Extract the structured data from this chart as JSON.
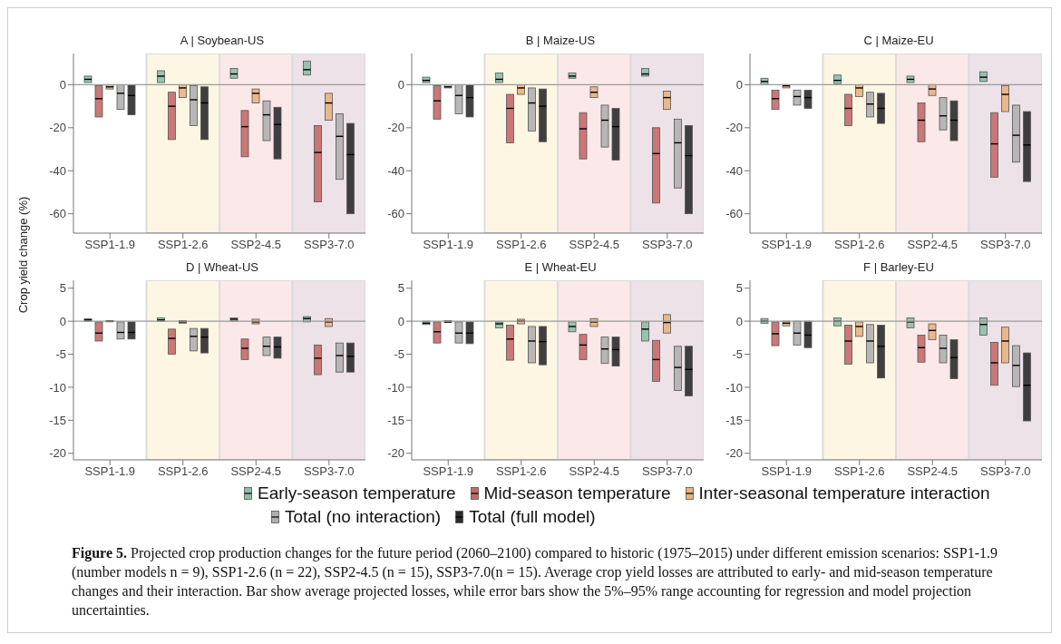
{
  "chart_data": [
    {
      "type": "box",
      "title": "A | Soybean-US",
      "categories": [
        "SSP1-1.9",
        "SSP1-2.6",
        "SSP2-4.5",
        "SSP3-7.0"
      ],
      "ylim": [
        -69,
        14.5
      ],
      "yticks": [
        -60,
        -40,
        -20,
        0
      ],
      "legend": "bottom",
      "annotations": [
        "Figure 5.",
        "Projected crop production changes for the future period (2060–2100) compared to historic (1975–2015) under different emission scenarios: SSP1-1.9 (number models n = 9), SSP1-2.6 (n = 22), SSP2-4.5 (n = 15), SSP3-7.0(n = 15). Average crop yield losses are attributed to early- and mid-season temperature changes and their interaction. Bar show average projected losses, while error bars show the 5%–95% range accounting for regression and model projection uncertainties."
      ],
      "ref_lines": [
        {
          "axis": "y",
          "value": 0,
          "color": "#9a9a9a"
        }
      ],
      "bands": [
        {
          "axis": "x",
          "from": "SSP1-2.6",
          "to": "SSP1-2.6",
          "color": "#fdf6e3"
        },
        {
          "axis": "x",
          "from": "SSP2-4.5",
          "to": "SSP2-4.5",
          "color": "#fbe8e8"
        },
        {
          "axis": "x",
          "from": "SSP3-7.0",
          "to": "SSP3-7.0",
          "color": "#ede2e8"
        }
      ],
      "series": [
        {
          "name": "Early-season temperature",
          "color": "#8dbfa8",
          "boxes": [
            {
              "low": 1,
              "q1": 1,
              "median": 2.5,
              "q3": 4,
              "high": 4
            },
            {
              "low": 1,
              "q1": 1,
              "median": 4,
              "q3": 6.5,
              "high": 6.5
            },
            {
              "low": 3,
              "q1": 3,
              "median": 5,
              "q3": 7.5,
              "high": 7.5
            },
            {
              "low": 4.5,
              "q1": 4.5,
              "median": 7,
              "q3": 11,
              "high": 11
            }
          ]
        },
        {
          "name": "Mid-season temperature",
          "color": "#c46a6a",
          "boxes": [
            {
              "low": -15,
              "q1": -15,
              "median": -6.5,
              "q3": -0.5,
              "high": -0.5
            },
            {
              "low": -25.5,
              "q1": -25.5,
              "median": -10,
              "q3": -3.5,
              "high": -3.5
            },
            {
              "low": -33.5,
              "q1": -33.5,
              "median": -19.5,
              "q3": -12,
              "high": -12
            },
            {
              "low": -54.5,
              "q1": -54.5,
              "median": -31.5,
              "q3": -19,
              "high": -19
            }
          ]
        },
        {
          "name": "Inter-seasonal temperature interaction",
          "color": "#e9b27f",
          "boxes": [
            {
              "low": -2,
              "q1": -2,
              "median": -1,
              "q3": 0,
              "high": 0
            },
            {
              "low": -6,
              "q1": -6,
              "median": -1.5,
              "q3": 0,
              "high": 0
            },
            {
              "low": -8.5,
              "q1": -8.5,
              "median": -4,
              "q3": -2,
              "high": -2
            },
            {
              "low": -16.5,
              "q1": -16.5,
              "median": -8.5,
              "q3": -4,
              "high": -4
            }
          ]
        },
        {
          "name": "Total (no interaction)",
          "color": "#b0b0b0",
          "boxes": [
            {
              "low": -11.5,
              "q1": -11.5,
              "median": -4,
              "q3": 0,
              "high": 0
            },
            {
              "low": -19,
              "q1": -19,
              "median": -7,
              "q3": -0.5,
              "high": -0.5
            },
            {
              "low": -26,
              "q1": -26,
              "median": -14,
              "q3": -7.5,
              "high": -7.5
            },
            {
              "low": -44,
              "q1": -44,
              "median": -24,
              "q3": -13.5,
              "high": -13.5
            }
          ]
        },
        {
          "name": "Total (full model)",
          "color": "#2b2b2b",
          "boxes": [
            {
              "low": -14,
              "q1": -14,
              "median": -5,
              "q3": 0,
              "high": 0
            },
            {
              "low": -25.5,
              "q1": -25.5,
              "median": -8.5,
              "q3": -1,
              "high": -1
            },
            {
              "low": -34.5,
              "q1": -34.5,
              "median": -18.5,
              "q3": -10.5,
              "high": -10.5
            },
            {
              "low": -60,
              "q1": -60,
              "median": -32.5,
              "q3": -18,
              "high": -18
            }
          ]
        }
      ]
    },
    {
      "type": "box",
      "title": "B | Maize-US",
      "categories": [
        "SSP1-1.9",
        "SSP1-2.6",
        "SSP2-4.5",
        "SSP3-7.0"
      ],
      "ylim": [
        -69,
        14.5
      ],
      "yticks": [
        -60,
        -40,
        -20,
        0
      ],
      "ref_lines": [
        {
          "axis": "y",
          "value": 0,
          "color": "#9a9a9a"
        }
      ],
      "bands": [
        {
          "axis": "x",
          "from": "SSP1-2.6",
          "to": "SSP1-2.6",
          "color": "#fdf6e3"
        },
        {
          "axis": "x",
          "from": "SSP2-4.5",
          "to": "SSP2-4.5",
          "color": "#fbe8e8"
        },
        {
          "axis": "x",
          "from": "SSP3-7.0",
          "to": "SSP3-7.0",
          "color": "#ede2e8"
        }
      ],
      "series": [
        {
          "color": "#8dbfa8",
          "boxes": [
            {
              "low": 1,
              "q1": 1,
              "median": 2,
              "q3": 3.5,
              "high": 3.5
            },
            {
              "low": 1,
              "q1": 1,
              "median": 2.5,
              "q3": 5.5,
              "high": 5.5
            },
            {
              "low": 3,
              "q1": 3,
              "median": 4,
              "q3": 5.5,
              "high": 5.5
            },
            {
              "low": 4,
              "q1": 4,
              "median": 5,
              "q3": 7.5,
              "high": 7.5
            }
          ]
        },
        {
          "color": "#c46a6a",
          "boxes": [
            {
              "low": -16,
              "q1": -16,
              "median": -7.5,
              "q3": -0.5,
              "high": -0.5
            },
            {
              "low": -27,
              "q1": -27,
              "median": -11,
              "q3": -4.5,
              "high": -4.5
            },
            {
              "low": -34.5,
              "q1": -34.5,
              "median": -20.5,
              "q3": -13,
              "high": -13
            },
            {
              "low": -55,
              "q1": -55,
              "median": -32,
              "q3": -20,
              "high": -20
            }
          ]
        },
        {
          "color": "#e9b27f",
          "boxes": [
            {
              "low": -1.5,
              "q1": -1.5,
              "median": -1,
              "q3": 0,
              "high": 0
            },
            {
              "low": -4.5,
              "q1": -4.5,
              "median": -1.5,
              "q3": 0,
              "high": 0
            },
            {
              "low": -6,
              "q1": -6,
              "median": -3.5,
              "q3": -1,
              "high": -1
            },
            {
              "low": -11.5,
              "q1": -11.5,
              "median": -6,
              "q3": -3,
              "high": -3
            }
          ]
        },
        {
          "color": "#b0b0b0",
          "boxes": [
            {
              "low": -13.5,
              "q1": -13.5,
              "median": -5,
              "q3": 0,
              "high": 0
            },
            {
              "low": -21.5,
              "q1": -21.5,
              "median": -8.5,
              "q3": -1.5,
              "high": -1.5
            },
            {
              "low": -29,
              "q1": -29,
              "median": -16.5,
              "q3": -9.5,
              "high": -9.5
            },
            {
              "low": -48,
              "q1": -48,
              "median": -27,
              "q3": -16,
              "high": -16
            }
          ]
        },
        {
          "color": "#2b2b2b",
          "boxes": [
            {
              "low": -15,
              "q1": -15,
              "median": -6,
              "q3": 0,
              "high": 0
            },
            {
              "low": -26.5,
              "q1": -26.5,
              "median": -10,
              "q3": -2,
              "high": -2
            },
            {
              "low": -35,
              "q1": -35,
              "median": -19.5,
              "q3": -11,
              "high": -11
            },
            {
              "low": -60,
              "q1": -60,
              "median": -33,
              "q3": -19,
              "high": -19
            }
          ]
        }
      ]
    },
    {
      "type": "box",
      "title": "C | Maize-EU",
      "categories": [
        "SSP1-1.9",
        "SSP1-2.6",
        "SSP2-4.5",
        "SSP3-7.0"
      ],
      "ylim": [
        -69,
        14.5
      ],
      "yticks": [
        -60,
        -40,
        -20,
        0
      ],
      "ref_lines": [
        {
          "axis": "y",
          "value": 0,
          "color": "#9a9a9a"
        }
      ],
      "bands": [
        {
          "axis": "x",
          "from": "SSP1-2.6",
          "to": "SSP1-2.6",
          "color": "#fdf6e3"
        },
        {
          "axis": "x",
          "from": "SSP2-4.5",
          "to": "SSP2-4.5",
          "color": "#fbe8e8"
        },
        {
          "axis": "x",
          "from": "SSP3-7.0",
          "to": "SSP3-7.0",
          "color": "#ede2e8"
        }
      ],
      "series": [
        {
          "color": "#8dbfa8",
          "boxes": [
            {
              "low": 0,
              "q1": 0,
              "median": 1.5,
              "q3": 3,
              "high": 3
            },
            {
              "low": 0.5,
              "q1": 0.5,
              "median": 2,
              "q3": 4.5,
              "high": 4.5
            },
            {
              "low": 1,
              "q1": 1,
              "median": 2.5,
              "q3": 4,
              "high": 4
            },
            {
              "low": 1.5,
              "q1": 1.5,
              "median": 3.5,
              "q3": 6,
              "high": 6
            }
          ]
        },
        {
          "color": "#c46a6a",
          "boxes": [
            {
              "low": -11.5,
              "q1": -11.5,
              "median": -6.5,
              "q3": -2.5,
              "high": -2.5
            },
            {
              "low": -19,
              "q1": -19,
              "median": -11,
              "q3": -4.5,
              "high": -4.5
            },
            {
              "low": -26.5,
              "q1": -26.5,
              "median": -16.5,
              "q3": -8.5,
              "high": -8.5
            },
            {
              "low": -43,
              "q1": -43,
              "median": -27.5,
              "q3": -13,
              "high": -13
            }
          ]
        },
        {
          "color": "#e9b27f",
          "boxes": [
            {
              "low": -1.5,
              "q1": -1.5,
              "median": -0.5,
              "q3": 0,
              "high": 0
            },
            {
              "low": -5.5,
              "q1": -5.5,
              "median": -1.5,
              "q3": 0,
              "high": 0
            },
            {
              "low": -5,
              "q1": -5,
              "median": -2,
              "q3": 0,
              "high": 0
            },
            {
              "low": -12.5,
              "q1": -12.5,
              "median": -4.5,
              "q3": -0.5,
              "high": -0.5
            }
          ]
        },
        {
          "color": "#b0b0b0",
          "boxes": [
            {
              "low": -9.5,
              "q1": -9.5,
              "median": -5.5,
              "q3": -2.5,
              "high": -2.5
            },
            {
              "low": -15,
              "q1": -15,
              "median": -9,
              "q3": -3.5,
              "high": -3.5
            },
            {
              "low": -21,
              "q1": -21,
              "median": -14.5,
              "q3": -6,
              "high": -6
            },
            {
              "low": -36,
              "q1": -36,
              "median": -23.5,
              "q3": -9.5,
              "high": -9.5
            }
          ]
        },
        {
          "color": "#2b2b2b",
          "boxes": [
            {
              "low": -11,
              "q1": -11,
              "median": -6,
              "q3": -2.5,
              "high": -2.5
            },
            {
              "low": -18,
              "q1": -18,
              "median": -11,
              "q3": -4,
              "high": -4
            },
            {
              "low": -26,
              "q1": -26,
              "median": -16.5,
              "q3": -7.5,
              "high": -7.5
            },
            {
              "low": -45,
              "q1": -45,
              "median": -28,
              "q3": -12.5,
              "high": -12.5
            }
          ]
        }
      ]
    },
    {
      "type": "box",
      "title": "D | Wheat-US",
      "ylabel": "Crop yield change (%)",
      "categories": [
        "SSP1-1.9",
        "SSP1-2.6",
        "SSP2-4.5",
        "SSP3-7.0"
      ],
      "ylim": [
        -21,
        6.2
      ],
      "yticks": [
        -20,
        -15,
        -10,
        -5,
        0,
        5
      ],
      "ref_lines": [
        {
          "axis": "y",
          "value": 0,
          "color": "#9a9a9a"
        }
      ],
      "bands": [
        {
          "axis": "x",
          "from": "SSP1-2.6",
          "to": "SSP1-2.6",
          "color": "#fdf6e3"
        },
        {
          "axis": "x",
          "from": "SSP2-4.5",
          "to": "SSP2-4.5",
          "color": "#fbe8e8"
        },
        {
          "axis": "x",
          "from": "SSP3-7.0",
          "to": "SSP3-7.0",
          "color": "#ede2e8"
        }
      ],
      "series": [
        {
          "color": "#8dbfa8",
          "boxes": [
            {
              "low": 0,
              "q1": 0,
              "median": 0.2,
              "q3": 0.4,
              "high": 0.4
            },
            {
              "low": 0,
              "q1": 0,
              "median": 0.2,
              "q3": 0.5,
              "high": 0.5
            },
            {
              "low": 0,
              "q1": 0,
              "median": 0.3,
              "q3": 0.5,
              "high": 0.5
            },
            {
              "low": -0.1,
              "q1": -0.1,
              "median": 0.4,
              "q3": 0.7,
              "high": 0.7
            }
          ]
        },
        {
          "color": "#c46a6a",
          "boxes": [
            {
              "low": -3,
              "q1": -3,
              "median": -1.8,
              "q3": -0.1,
              "high": -0.1
            },
            {
              "low": -5,
              "q1": -5,
              "median": -2.6,
              "q3": -1.2,
              "high": -1.2
            },
            {
              "low": -5.8,
              "q1": -5.8,
              "median": -4.1,
              "q3": -2.7,
              "high": -2.7
            },
            {
              "low": -8.1,
              "q1": -8.1,
              "median": -5.6,
              "q3": -3.6,
              "high": -3.6
            }
          ]
        },
        {
          "color": "#e9b27f",
          "boxes": [
            {
              "low": -0.1,
              "q1": -0.1,
              "median": 0,
              "q3": 0.1,
              "high": 0.1
            },
            {
              "low": -0.3,
              "q1": -0.3,
              "median": -0.1,
              "q3": 0.1,
              "high": 0.1
            },
            {
              "low": -0.4,
              "q1": -0.4,
              "median": -0.1,
              "q3": 0.3,
              "high": 0.3
            },
            {
              "low": -0.8,
              "q1": -0.8,
              "median": -0.1,
              "q3": 0.4,
              "high": 0.4
            }
          ]
        },
        {
          "color": "#b0b0b0",
          "boxes": [
            {
              "low": -2.7,
              "q1": -2.7,
              "median": -1.7,
              "q3": -0.1,
              "high": -0.1
            },
            {
              "low": -4.5,
              "q1": -4.5,
              "median": -2.3,
              "q3": -1.1,
              "high": -1.1
            },
            {
              "low": -5.2,
              "q1": -5.2,
              "median": -3.8,
              "q3": -2.4,
              "high": -2.4
            },
            {
              "low": -7.7,
              "q1": -7.7,
              "median": -5.2,
              "q3": -3.3,
              "high": -3.3
            }
          ]
        },
        {
          "color": "#2b2b2b",
          "boxes": [
            {
              "low": -2.7,
              "q1": -2.7,
              "median": -1.7,
              "q3": -0.1,
              "high": -0.1
            },
            {
              "low": -4.8,
              "q1": -4.8,
              "median": -2.4,
              "q3": -1.1,
              "high": -1.1
            },
            {
              "low": -5.6,
              "q1": -5.6,
              "median": -3.9,
              "q3": -2.4,
              "high": -2.4
            },
            {
              "low": -7.7,
              "q1": -7.7,
              "median": -5.3,
              "q3": -3.3,
              "high": -3.3
            }
          ]
        }
      ]
    },
    {
      "type": "box",
      "title": "E | Wheat-EU",
      "categories": [
        "SSP1-1.9",
        "SSP1-2.6",
        "SSP2-4.5",
        "SSP3-7.0"
      ],
      "ylim": [
        -21,
        6.2
      ],
      "yticks": [
        -20,
        -15,
        -10,
        -5,
        0,
        5
      ],
      "ref_lines": [
        {
          "axis": "y",
          "value": 0,
          "color": "#9a9a9a"
        }
      ],
      "bands": [
        {
          "axis": "x",
          "from": "SSP1-2.6",
          "to": "SSP1-2.6",
          "color": "#fdf6e3"
        },
        {
          "axis": "x",
          "from": "SSP2-4.5",
          "to": "SSP2-4.5",
          "color": "#fbe8e8"
        },
        {
          "axis": "x",
          "from": "SSP3-7.0",
          "to": "SSP3-7.0",
          "color": "#ede2e8"
        }
      ],
      "series": [
        {
          "color": "#8dbfa8",
          "boxes": [
            {
              "low": -0.5,
              "q1": -0.5,
              "median": -0.3,
              "q3": 0,
              "high": 0
            },
            {
              "low": -1,
              "q1": -1,
              "median": -0.4,
              "q3": -0.1,
              "high": -0.1
            },
            {
              "low": -1.6,
              "q1": -1.6,
              "median": -0.8,
              "q3": -0.1,
              "high": -0.1
            },
            {
              "low": -3,
              "q1": -3,
              "median": -1.2,
              "q3": -0.1,
              "high": -0.1
            }
          ]
        },
        {
          "color": "#c46a6a",
          "boxes": [
            {
              "low": -3.3,
              "q1": -3.3,
              "median": -1.6,
              "q3": -0.1,
              "high": -0.1
            },
            {
              "low": -5.9,
              "q1": -5.9,
              "median": -2.7,
              "q3": -0.6,
              "high": -0.6
            },
            {
              "low": -5.8,
              "q1": -5.8,
              "median": -3.6,
              "q3": -2,
              "high": -2
            },
            {
              "low": -9.1,
              "q1": -9.1,
              "median": -5.8,
              "q3": -2.9,
              "high": -2.9
            }
          ]
        },
        {
          "color": "#e9b27f",
          "boxes": [
            {
              "low": -0.2,
              "q1": -0.2,
              "median": -0.1,
              "q3": 0.1,
              "high": 0.1
            },
            {
              "low": -0.4,
              "q1": -0.4,
              "median": 0,
              "q3": 0.3,
              "high": 0.3
            },
            {
              "low": -0.8,
              "q1": -0.8,
              "median": -0.1,
              "q3": 0.4,
              "high": 0.4
            },
            {
              "low": -1.8,
              "q1": -1.8,
              "median": -0.2,
              "q3": 1,
              "high": 1
            }
          ]
        },
        {
          "color": "#b0b0b0",
          "boxes": [
            {
              "low": -3.3,
              "q1": -3.3,
              "median": -1.8,
              "q3": -0.1,
              "high": -0.1
            },
            {
              "low": -6.3,
              "q1": -6.3,
              "median": -3,
              "q3": -0.8,
              "high": -0.8
            },
            {
              "low": -6.4,
              "q1": -6.4,
              "median": -4.2,
              "q3": -2.4,
              "high": -2.4
            },
            {
              "low": -10.5,
              "q1": -10.5,
              "median": -7,
              "q3": -3.8,
              "high": -3.8
            }
          ]
        },
        {
          "color": "#2b2b2b",
          "boxes": [
            {
              "low": -3.4,
              "q1": -3.4,
              "median": -1.8,
              "q3": -0.1,
              "high": -0.1
            },
            {
              "low": -6.6,
              "q1": -6.6,
              "median": -3.1,
              "q3": -0.8,
              "high": -0.8
            },
            {
              "low": -6.8,
              "q1": -6.8,
              "median": -4.3,
              "q3": -2.4,
              "high": -2.4
            },
            {
              "low": -11.3,
              "q1": -11.3,
              "median": -7.3,
              "q3": -3.8,
              "high": -3.8
            }
          ]
        }
      ]
    },
    {
      "type": "box",
      "title": "F | Barley-EU",
      "categories": [
        "SSP1-1.9",
        "SSP1-2.6",
        "SSP2-4.5",
        "SSP3-7.0"
      ],
      "ylim": [
        -21,
        6.2
      ],
      "yticks": [
        -20,
        -15,
        -10,
        -5,
        0,
        5
      ],
      "ref_lines": [
        {
          "axis": "y",
          "value": 0,
          "color": "#9a9a9a"
        }
      ],
      "bands": [
        {
          "axis": "x",
          "from": "SSP1-2.6",
          "to": "SSP1-2.6",
          "color": "#fdf6e3"
        },
        {
          "axis": "x",
          "from": "SSP2-4.5",
          "to": "SSP2-4.5",
          "color": "#fbe8e8"
        },
        {
          "axis": "x",
          "from": "SSP3-7.0",
          "to": "SSP3-7.0",
          "color": "#ede2e8"
        }
      ],
      "series": [
        {
          "color": "#8dbfa8",
          "boxes": [
            {
              "low": -0.3,
              "q1": -0.3,
              "median": 0,
              "q3": 0.4,
              "high": 0.4
            },
            {
              "low": -0.7,
              "q1": -0.7,
              "median": 0,
              "q3": 0.5,
              "high": 0.5
            },
            {
              "low": -1,
              "q1": -1,
              "median": -0.1,
              "q3": 0.5,
              "high": 0.5
            },
            {
              "low": -2.1,
              "q1": -2.1,
              "median": -0.5,
              "q3": 0.5,
              "high": 0.5
            }
          ]
        },
        {
          "color": "#c46a6a",
          "boxes": [
            {
              "low": -3.7,
              "q1": -3.7,
              "median": -1.9,
              "q3": -0.1,
              "high": -0.1
            },
            {
              "low": -6.5,
              "q1": -6.5,
              "median": -3,
              "q3": -0.6,
              "high": -0.6
            },
            {
              "low": -6.2,
              "q1": -6.2,
              "median": -4,
              "q3": -2.1,
              "high": -2.1
            },
            {
              "low": -9.7,
              "q1": -9.7,
              "median": -6.3,
              "q3": -3.2,
              "high": -3.2
            }
          ]
        },
        {
          "color": "#e9b27f",
          "boxes": [
            {
              "low": -0.7,
              "q1": -0.7,
              "median": -0.3,
              "q3": 0,
              "high": 0
            },
            {
              "low": -2.3,
              "q1": -2.3,
              "median": -0.8,
              "q3": -0.1,
              "high": -0.1
            },
            {
              "low": -2.8,
              "q1": -2.8,
              "median": -1.4,
              "q3": -0.4,
              "high": -0.4
            },
            {
              "low": -6.3,
              "q1": -6.3,
              "median": -3,
              "q3": -0.9,
              "high": -0.9
            }
          ]
        },
        {
          "color": "#b0b0b0",
          "boxes": [
            {
              "low": -3.6,
              "q1": -3.6,
              "median": -1.8,
              "q3": 0,
              "high": 0
            },
            {
              "low": -6.3,
              "q1": -6.3,
              "median": -3,
              "q3": -0.5,
              "high": -0.5
            },
            {
              "low": -6.3,
              "q1": -6.3,
              "median": -4.1,
              "q3": -2.1,
              "high": -2.1
            },
            {
              "low": -9.9,
              "q1": -9.9,
              "median": -6.7,
              "q3": -3.7,
              "high": -3.7
            }
          ]
        },
        {
          "color": "#2b2b2b",
          "boxes": [
            {
              "low": -4,
              "q1": -4,
              "median": -2.1,
              "q3": 0,
              "high": 0
            },
            {
              "low": -8.6,
              "q1": -8.6,
              "median": -3.8,
              "q3": -0.6,
              "high": -0.6
            },
            {
              "low": -8.7,
              "q1": -8.7,
              "median": -5.5,
              "q3": -2.8,
              "high": -2.8
            },
            {
              "low": -15.1,
              "q1": -15.1,
              "median": -9.7,
              "q3": -4.8,
              "high": -4.8
            }
          ]
        }
      ]
    }
  ]
}
